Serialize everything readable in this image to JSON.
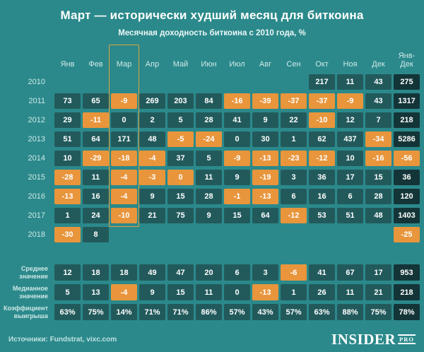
{
  "title": "Март — исторически худший месяц для биткоина",
  "subtitle": "Месячная доходность биткоина с 2010 года, %",
  "footer": {
    "sources": "Источники: Fundstrat, vixc.com",
    "logo_main": "INSIDER",
    "logo_pro": "PRO"
  },
  "colors": {
    "background": "#2b898b",
    "positive_cell": "#225a5c",
    "negative_cell": "#e8953c",
    "total_cell": "#143538",
    "highlight_border": "#dfa23f",
    "label_text": "#cfe9e9",
    "value_text": "#ffffff"
  },
  "chart_data": {
    "type": "heatmap",
    "title": "Март — исторически худший месяц для биткоина",
    "subtitle": "Месячная доходность биткоина с 2010 года, %",
    "unit": "%",
    "highlighted_column": "Мар",
    "highlighted_column_index": 2,
    "legend": "оранжевый = отрицательная доходность, тёмно-бирюзовый = положительная, тёмный = итог Янв-Дек",
    "columns": [
      "Янв",
      "Фев",
      "Мар",
      "Апр",
      "Май",
      "Июн",
      "Июл",
      "Авг",
      "Сен",
      "Окт",
      "Ноя",
      "Дек",
      "Янв-Дек"
    ],
    "rows": [
      {
        "label": "2010",
        "values": [
          null,
          null,
          null,
          null,
          null,
          null,
          null,
          null,
          null,
          217,
          11,
          43,
          275
        ]
      },
      {
        "label": "2011",
        "values": [
          73,
          65,
          -9,
          269,
          203,
          84,
          -16,
          -39,
          -37,
          -37,
          -9,
          43,
          1317
        ]
      },
      {
        "label": "2012",
        "values": [
          29,
          -11,
          0,
          2,
          5,
          28,
          41,
          9,
          22,
          -10,
          12,
          7,
          218
        ]
      },
      {
        "label": "2013",
        "values": [
          51,
          64,
          171,
          48,
          -5,
          -24,
          0,
          30,
          1,
          62,
          437,
          -34,
          5286
        ]
      },
      {
        "label": "2014",
        "values": [
          10,
          -29,
          -18,
          -4,
          37,
          5,
          -9,
          -13,
          -23,
          -12,
          10,
          -16,
          -56
        ]
      },
      {
        "label": "2015",
        "values": [
          -28,
          11,
          -4,
          -3,
          0,
          11,
          9,
          -19,
          3,
          36,
          17,
          15,
          36
        ],
        "color_overrides": {
          "4": "neg"
        }
      },
      {
        "label": "2016",
        "values": [
          -13,
          16,
          -4,
          9,
          15,
          28,
          -1,
          -13,
          6,
          16,
          6,
          28,
          120
        ]
      },
      {
        "label": "2017",
        "values": [
          1,
          24,
          -10,
          21,
          75,
          9,
          15,
          64,
          -12,
          53,
          51,
          48,
          1403
        ]
      },
      {
        "label": "2018",
        "values": [
          -30,
          8,
          null,
          null,
          null,
          null,
          null,
          null,
          null,
          null,
          null,
          null,
          -25
        ]
      },
      {
        "label": "Среднее значение",
        "group": "summary",
        "values": [
          12,
          18,
          18,
          49,
          47,
          20,
          6,
          3,
          -6,
          41,
          67,
          17,
          953
        ]
      },
      {
        "label": "Медианное значение",
        "group": "summary",
        "values": [
          5,
          13,
          -4,
          9,
          15,
          11,
          0,
          -13,
          1,
          26,
          11,
          21,
          218
        ]
      },
      {
        "label": "Коэффициент выигрыша",
        "group": "summary",
        "suffix": "%",
        "values": [
          63,
          75,
          14,
          71,
          71,
          86,
          57,
          43,
          57,
          63,
          88,
          75,
          78
        ]
      }
    ]
  }
}
